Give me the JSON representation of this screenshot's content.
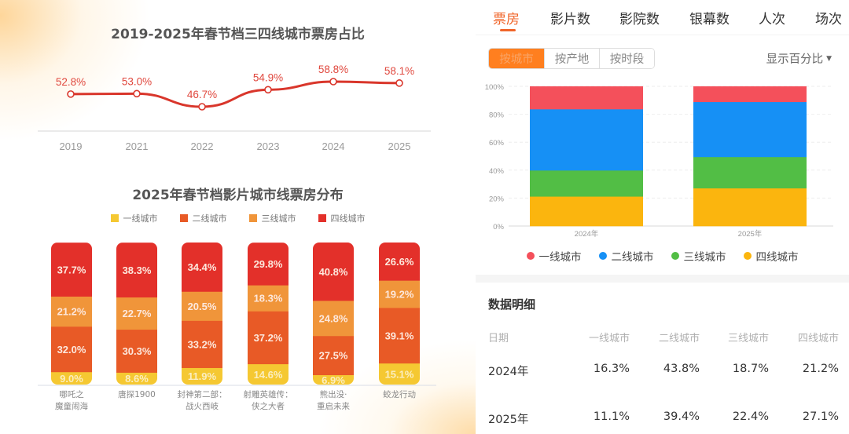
{
  "left_panel": {
    "line_chart_title": "2019-2025年春节档三四线城市票房占比",
    "bar_chart_title": "2025年春节档影片城市线票房分布"
  },
  "right_panel": {
    "tabs": [
      {
        "label": "票房",
        "active": true
      },
      {
        "label": "影片数",
        "active": false
      },
      {
        "label": "影院数",
        "active": false
      },
      {
        "label": "银幕数",
        "active": false
      },
      {
        "label": "人次",
        "active": false
      },
      {
        "label": "场次",
        "active": false
      }
    ],
    "segments": [
      {
        "label": "按城市",
        "active": true
      },
      {
        "label": "按产地",
        "active": false
      },
      {
        "label": "按时段",
        "active": false
      }
    ],
    "percent_toggle": {
      "label": "显示百分比",
      "icon": "caret-down-icon"
    },
    "detail": {
      "title": "数据明细",
      "headers": [
        "日期",
        "一线城市",
        "二线城市",
        "三线城市",
        "四线城市"
      ],
      "rows": [
        [
          "2024年",
          "16.3%",
          "43.8%",
          "18.7%",
          "21.2%"
        ],
        [
          "2025年",
          "11.1%",
          "39.4%",
          "22.4%",
          "27.1%"
        ]
      ]
    }
  },
  "colors": {
    "accent": "#f0652a",
    "line": "#d9362b",
    "tier1_left": "#f5c832",
    "tier2_left": "#e85a26",
    "tier3_left": "#f0953a",
    "tier4_left": "#e3302a",
    "tier1_right": "#f4505b",
    "tier2_right": "#1690f5",
    "tier3_right": "#52be45",
    "tier4_right": "#fbb50e"
  },
  "chart_data": [
    {
      "type": "line",
      "title": "2019-2025年春节档三四线城市票房占比",
      "categories": [
        "2019",
        "2021",
        "2022",
        "2023",
        "2024",
        "2025"
      ],
      "values": [
        52.8,
        53.0,
        46.7,
        54.9,
        58.8,
        58.1
      ],
      "labels": [
        "52.8%",
        "53.0%",
        "46.7%",
        "54.9%",
        "58.8%",
        "58.1%"
      ],
      "xlabel": "",
      "ylabel": "",
      "grid": false
    },
    {
      "type": "bar",
      "stacked": true,
      "title": "2025年春节档影片城市线票房分布",
      "categories": [
        "哪吒之\n魔童闹海",
        "唐探1900",
        "封神第二部：\n战火西岐",
        "射雕英雄传：\n侠之大者",
        "熊出没·\n重启未来",
        "蛟龙行动"
      ],
      "legend": [
        "一线城市",
        "二线城市",
        "三线城市",
        "四线城市"
      ],
      "legend_position": "top",
      "series": [
        {
          "name": "一线城市",
          "values": [
            9.0,
            8.6,
            11.9,
            14.6,
            6.9,
            15.1
          ]
        },
        {
          "name": "二线城市",
          "values": [
            32.0,
            30.3,
            33.2,
            37.2,
            27.5,
            39.1
          ]
        },
        {
          "name": "三线城市",
          "values": [
            21.2,
            22.7,
            20.5,
            18.3,
            24.8,
            19.2
          ]
        },
        {
          "name": "四线城市",
          "values": [
            37.7,
            38.3,
            34.4,
            29.8,
            40.8,
            26.6
          ]
        }
      ],
      "ylim": [
        0,
        100
      ]
    },
    {
      "type": "bar",
      "stacked": true,
      "title": "",
      "categories": [
        "2024年",
        "2025年"
      ],
      "legend": [
        "一线城市",
        "二线城市",
        "三线城市",
        "四线城市"
      ],
      "legend_position": "bottom",
      "stack_order_bottom_to_top": [
        "四线城市",
        "三线城市",
        "二线城市",
        "一线城市"
      ],
      "series": [
        {
          "name": "一线城市",
          "values": [
            16.3,
            11.1
          ]
        },
        {
          "name": "二线城市",
          "values": [
            43.8,
            39.4
          ]
        },
        {
          "name": "三线城市",
          "values": [
            18.7,
            22.4
          ]
        },
        {
          "name": "四线城市",
          "values": [
            21.2,
            27.1
          ]
        }
      ],
      "yticks": [
        "0%",
        "20%",
        "40%",
        "60%",
        "80%",
        "100%"
      ],
      "ylim": [
        0,
        100
      ],
      "grid": true
    }
  ]
}
